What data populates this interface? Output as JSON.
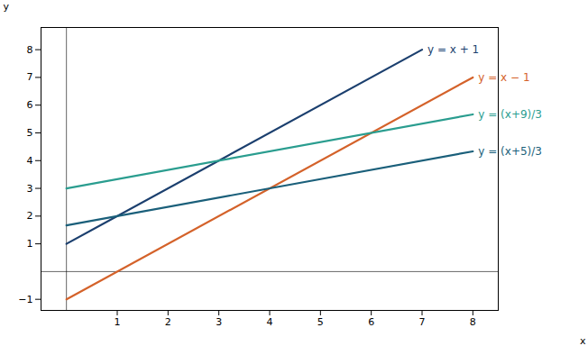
{
  "chart_data": {
    "type": "line",
    "xlabel": "x",
    "ylabel": "y",
    "xlim": [
      -0.5,
      8.5
    ],
    "ylim": [
      -1.4,
      8.8
    ],
    "xticks": [
      1,
      2,
      3,
      4,
      5,
      6,
      7,
      8
    ],
    "yticks": [
      -1,
      1,
      2,
      3,
      4,
      5,
      6,
      7,
      8
    ],
    "grid": false,
    "series": [
      {
        "name": "y = x + 1",
        "color": "#1b3f6e",
        "x": [
          0,
          7
        ],
        "values": [
          1,
          8
        ]
      },
      {
        "name": "y = x − 1",
        "color": "#d4622a",
        "x": [
          0,
          8
        ],
        "values": [
          -1,
          7
        ]
      },
      {
        "name": "y = (x+9)/3",
        "color": "#2a9d8f",
        "x": [
          0,
          8
        ],
        "values": [
          3.0,
          5.66664
        ]
      },
      {
        "name": "y = (x+5)/3",
        "color": "#1a5f7a",
        "x": [
          0,
          8
        ],
        "values": [
          1.66667,
          4.33331
        ]
      }
    ]
  }
}
